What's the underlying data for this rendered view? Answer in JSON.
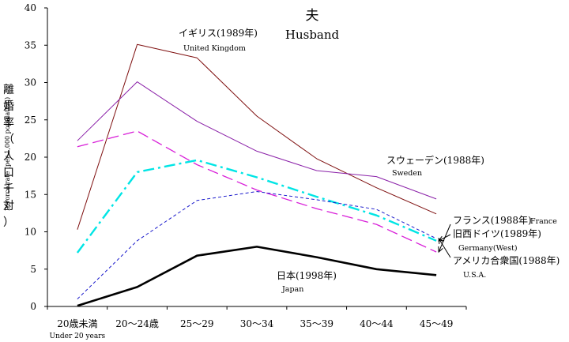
{
  "chart_data": {
    "type": "line",
    "title": "夫",
    "subtitle": "Husband",
    "ylabel": "離婚率（人口千対）",
    "ylabel_en": "Divorce rate (per 1,000 population)",
    "xlabel": "",
    "ylim": [
      0,
      40
    ],
    "yticks": [
      "0",
      "5",
      "10",
      "15",
      "20",
      "25",
      "30",
      "35",
      "40"
    ],
    "categories": [
      "20歳未満",
      "20～24歳",
      "25～29",
      "30～34",
      "35～39",
      "40～44",
      "45～49"
    ],
    "category_sub": [
      "Under 20 years",
      "",
      "",
      "",
      "",
      "",
      ""
    ],
    "grid": false,
    "series": [
      {
        "name": "イギリス(1989年)",
        "name_en": "United Kingdom",
        "color": "#7f1010",
        "dash": "solid",
        "values": [
          10.3,
          35.1,
          33.3,
          25.5,
          19.8,
          15.9,
          12.4
        ]
      },
      {
        "name": "スウェーデン(1988年)",
        "name_en": "Sweden",
        "color": "#8a20a8",
        "dash": "solid",
        "values": [
          22.2,
          30.1,
          24.8,
          20.8,
          18.2,
          17.4,
          14.4
        ]
      },
      {
        "name": "フランス(1988年)",
        "name_en": "France",
        "color": "#d81ed8",
        "dash": "longdash",
        "values": [
          21.4,
          23.5,
          19.0,
          15.6,
          13.1,
          11.0,
          7.3
        ]
      },
      {
        "name": "旧西ドイツ(1989年)",
        "name_en": "Germany(West)",
        "color": "#00e5e5",
        "dash": "dashdot",
        "values": [
          7.2,
          18.0,
          19.6,
          17.3,
          14.7,
          12.2,
          8.8
        ]
      },
      {
        "name": "アメリカ合衆国(1988年)",
        "name_en": "U.S.A.",
        "color": "#1a1acc",
        "dash": "shortdash",
        "values": [
          1.0,
          8.8,
          14.2,
          15.4,
          14.3,
          13.0,
          9.1
        ]
      },
      {
        "name": "日本(1998年)",
        "name_en": "Japan",
        "color": "#000000",
        "dash": "bold",
        "values": [
          0.1,
          2.6,
          6.8,
          8.0,
          6.6,
          5.0,
          4.2
        ]
      }
    ]
  }
}
